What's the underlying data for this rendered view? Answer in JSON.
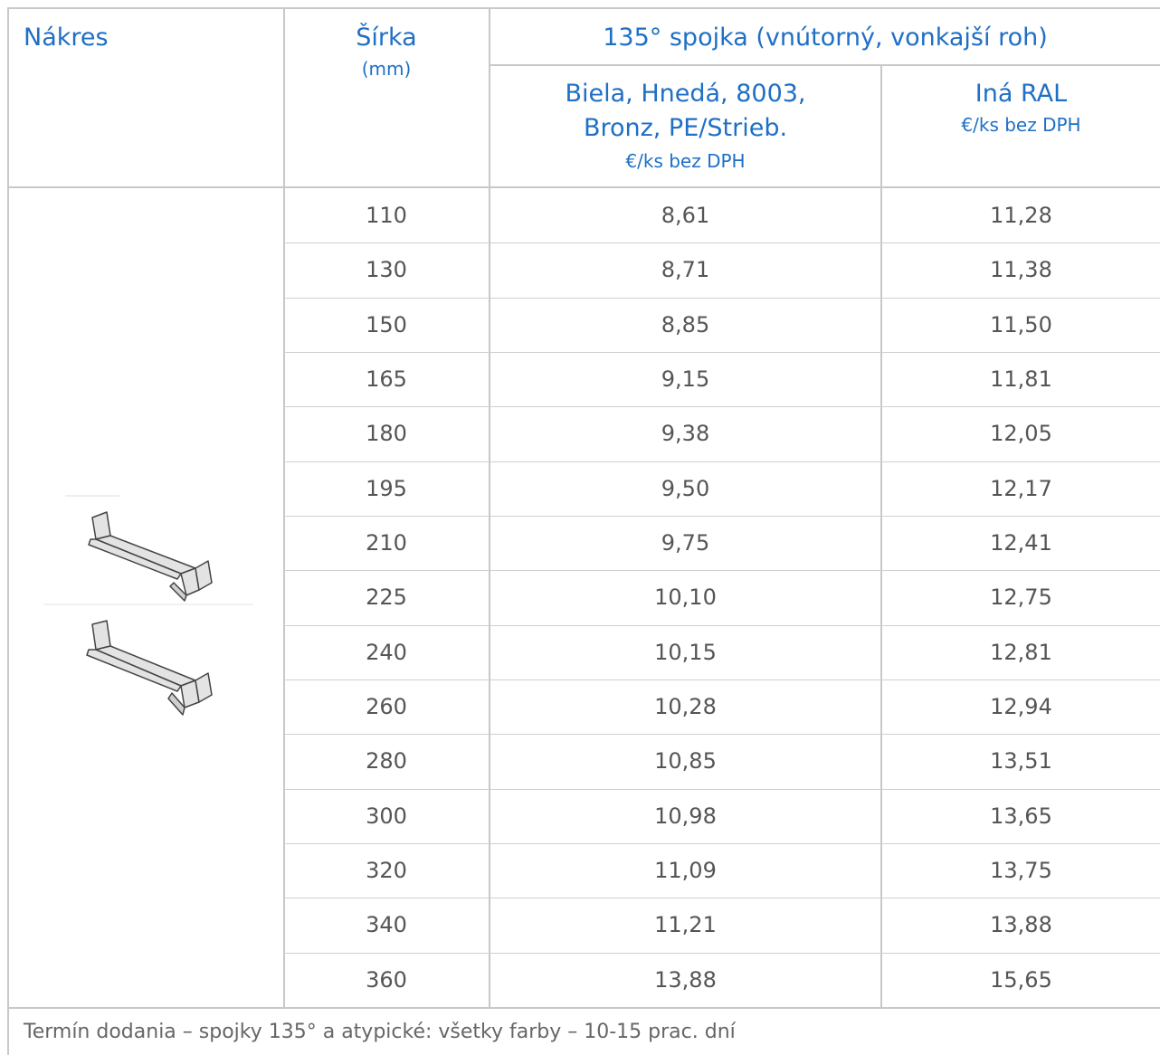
{
  "header": {
    "drawing": "Nákres",
    "width": "Šírka",
    "width_unit": "(mm)",
    "group": "135° spojka (vnútorný, vonkajší roh)",
    "col1_line1": "Biela, Hnedá, 8003,",
    "col1_line2": "Bronz, PE/Strieb.",
    "col1_unit": "€/ks bez DPH",
    "col2_line1": "Iná RAL",
    "col2_unit": "€/ks bez DPH"
  },
  "rows": [
    {
      "width": "110",
      "standard": "8,61",
      "other": "11,28"
    },
    {
      "width": "130",
      "standard": "8,71",
      "other": "11,38"
    },
    {
      "width": "150",
      "standard": "8,85",
      "other": "11,50"
    },
    {
      "width": "165",
      "standard": "9,15",
      "other": "11,81"
    },
    {
      "width": "180",
      "standard": "9,38",
      "other": "12,05"
    },
    {
      "width": "195",
      "standard": "9,50",
      "other": "12,17"
    },
    {
      "width": "210",
      "standard": "9,75",
      "other": "12,41"
    },
    {
      "width": "225",
      "standard": "10,10",
      "other": "12,75"
    },
    {
      "width": "240",
      "standard": "10,15",
      "other": "12,81"
    },
    {
      "width": "260",
      "standard": "10,28",
      "other": "12,94"
    },
    {
      "width": "280",
      "standard": "10,85",
      "other": "13,51"
    },
    {
      "width": "300",
      "standard": "10,98",
      "other": "13,65"
    },
    {
      "width": "320",
      "standard": "11,09",
      "other": "13,75"
    },
    {
      "width": "340",
      "standard": "11,21",
      "other": "13,88"
    },
    {
      "width": "360",
      "standard": "13,88",
      "other": "15,65"
    }
  ],
  "footer": "Termín dodania – spojky 135° a atypické: všetky farby – 10-15 prac. dní",
  "icons": [
    "sill-connector-drawing-icon"
  ],
  "colors": {
    "header_text": "#1f6fc5",
    "body_text": "#555555",
    "grid": "#c8c8c8"
  }
}
